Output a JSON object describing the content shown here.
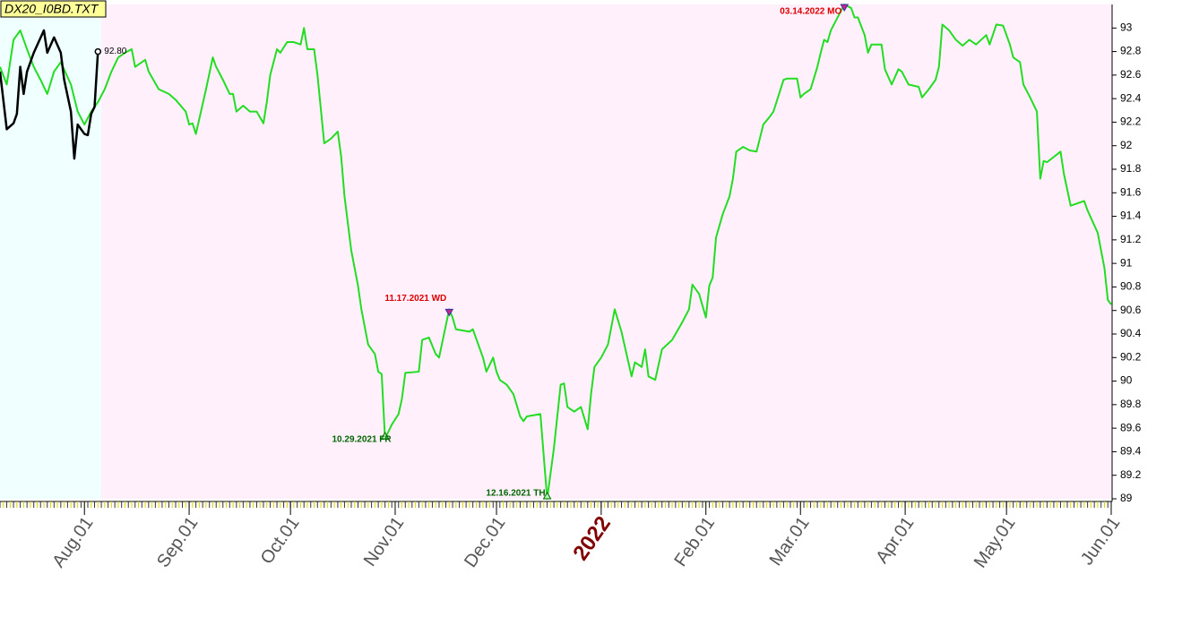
{
  "chart_data": {
    "type": "line",
    "title": "DX20_I0BD.TXT",
    "xlim": [
      "2021-07-07",
      "2022-06-01"
    ],
    "ylim": [
      89,
      93.2
    ],
    "yticks": [
      89,
      89.2,
      89.4,
      89.6,
      89.8,
      90,
      90.2,
      90.4,
      90.6,
      90.8,
      91,
      91.2,
      91.4,
      91.6,
      91.8,
      92,
      92.2,
      92.4,
      92.6,
      92.8,
      93
    ],
    "xticks": [
      {
        "value": "2021-08-01",
        "label": "Aug.01"
      },
      {
        "value": "2021-09-01",
        "label": "Sep.01"
      },
      {
        "value": "2021-10-01",
        "label": "Oct.01"
      },
      {
        "value": "2021-11-01",
        "label": "Nov.01"
      },
      {
        "value": "2021-12-01",
        "label": "Dec.01"
      },
      {
        "value": "2022-01-01",
        "label": "2022"
      },
      {
        "value": "2022-02-01",
        "label": "Feb.01"
      },
      {
        "value": "2022-03-01",
        "label": "Mar.01"
      },
      {
        "value": "2022-04-01",
        "label": "Apr.01"
      },
      {
        "value": "2022-05-01",
        "label": "May.01"
      },
      {
        "value": "2022-06-01",
        "label": "Jun.01"
      }
    ],
    "series": [
      {
        "color": "#22dd22",
        "x": [
          "2021-07-07",
          "2021-07-09",
          "2021-07-11",
          "2021-07-13",
          "2021-07-15",
          "2021-07-17",
          "2021-07-19",
          "2021-07-21",
          "2021-07-23",
          "2021-07-25",
          "2021-07-28",
          "2021-07-30",
          "2021-08-01",
          "2021-08-03",
          "2021-08-05",
          "2021-08-07",
          "2021-08-09",
          "2021-08-11",
          "2021-08-13",
          "2021-08-15",
          "2021-08-16",
          "2021-08-19",
          "2021-08-20",
          "2021-08-23",
          "2021-08-26",
          "2021-08-28",
          "2021-08-31",
          "2021-09-01",
          "2021-09-02",
          "2021-09-03",
          "2021-09-06",
          "2021-09-08",
          "2021-09-09",
          "2021-09-11",
          "2021-09-13",
          "2021-09-14",
          "2021-09-15",
          "2021-09-17",
          "2021-09-19",
          "2021-09-21",
          "2021-09-23",
          "2021-09-24",
          "2021-09-25",
          "2021-09-27",
          "2021-09-28",
          "2021-09-30",
          "2021-10-02",
          "2021-10-04",
          "2021-10-05",
          "2021-10-06",
          "2021-10-08",
          "2021-10-09",
          "2021-10-11",
          "2021-10-13",
          "2021-10-15",
          "2021-10-16",
          "2021-10-17",
          "2021-10-19",
          "2021-10-21",
          "2021-10-22",
          "2021-10-24",
          "2021-10-26",
          "2021-10-27",
          "2021-10-28",
          "2021-10-29",
          "2021-10-31",
          "2021-11-02",
          "2021-11-03",
          "2021-11-04",
          "2021-11-08",
          "2021-11-09",
          "2021-11-11",
          "2021-11-13",
          "2021-11-14",
          "2021-11-17",
          "2021-11-18",
          "2021-11-19",
          "2021-11-23",
          "2021-11-24",
          "2021-11-27",
          "2021-11-28",
          "2021-11-30",
          "2021-12-01",
          "2021-12-02",
          "2021-12-04",
          "2021-12-06",
          "2021-12-08",
          "2021-12-09",
          "2021-12-10",
          "2021-12-14",
          "2021-12-16",
          "2021-12-18",
          "2021-12-20",
          "2021-12-21",
          "2021-12-22",
          "2021-12-24",
          "2021-12-26",
          "2021-12-28",
          "2021-12-29",
          "2021-12-30",
          "2022-01-01",
          "2022-01-03",
          "2022-01-05",
          "2022-01-07",
          "2022-01-10",
          "2022-01-11",
          "2022-01-13",
          "2022-01-14",
          "2022-01-15",
          "2022-01-17",
          "2022-01-19",
          "2022-01-22",
          "2022-01-25",
          "2022-01-27",
          "2022-01-28",
          "2022-01-30",
          "2022-02-01",
          "2022-02-02",
          "2022-02-03",
          "2022-02-04",
          "2022-02-06",
          "2022-02-08",
          "2022-02-09",
          "2022-02-10",
          "2022-02-12",
          "2022-02-14",
          "2022-02-16",
          "2022-02-18",
          "2022-02-20",
          "2022-02-21",
          "2022-02-24",
          "2022-02-25",
          "2022-02-28",
          "2022-03-01",
          "2022-03-02",
          "2022-03-04",
          "2022-03-06",
          "2022-03-07",
          "2022-03-08",
          "2022-03-09",
          "2022-03-10",
          "2022-03-12",
          "2022-03-14",
          "2022-03-16",
          "2022-03-17",
          "2022-03-18",
          "2022-03-20",
          "2022-03-21",
          "2022-03-22",
          "2022-03-25",
          "2022-03-26",
          "2022-03-28",
          "2022-03-30",
          "2022-03-31",
          "2022-04-02",
          "2022-04-05",
          "2022-04-06",
          "2022-04-08",
          "2022-04-10",
          "2022-04-11",
          "2022-04-12",
          "2022-04-14",
          "2022-04-16",
          "2022-04-18",
          "2022-04-20",
          "2022-04-22",
          "2022-04-25",
          "2022-04-26",
          "2022-04-28",
          "2022-04-30",
          "2022-05-02",
          "2022-05-03",
          "2022-05-05",
          "2022-05-06",
          "2022-05-08",
          "2022-05-10",
          "2022-05-11",
          "2022-05-12",
          "2022-05-13",
          "2022-05-17",
          "2022-05-18",
          "2022-05-20",
          "2022-05-24",
          "2022-05-25",
          "2022-05-28",
          "2022-05-30",
          "2022-05-31",
          "2022-06-01"
        ],
        "values": [
          92.67,
          92.52,
          92.9,
          92.98,
          92.82,
          92.67,
          92.56,
          92.44,
          92.63,
          92.71,
          92.52,
          92.29,
          92.18,
          92.29,
          92.37,
          92.48,
          92.63,
          92.75,
          92.79,
          92.82,
          92.67,
          92.73,
          92.63,
          92.48,
          92.44,
          92.39,
          92.29,
          92.18,
          92.19,
          92.1,
          92.48,
          92.75,
          92.67,
          92.56,
          92.44,
          92.44,
          92.29,
          92.34,
          92.29,
          92.29,
          92.19,
          92.37,
          92.6,
          92.82,
          92.79,
          92.88,
          92.88,
          92.86,
          93.0,
          92.82,
          92.82,
          92.6,
          92.02,
          92.06,
          92.12,
          91.91,
          91.57,
          91.11,
          90.81,
          90.61,
          90.31,
          90.23,
          90.08,
          90.06,
          89.51,
          89.63,
          89.72,
          89.85,
          90.07,
          90.08,
          90.35,
          90.37,
          90.23,
          90.2,
          90.61,
          90.54,
          90.44,
          90.42,
          90.44,
          90.2,
          90.08,
          90.2,
          90.08,
          90.01,
          89.97,
          89.89,
          89.7,
          89.66,
          89.7,
          89.72,
          89.0,
          89.43,
          89.97,
          89.98,
          89.78,
          89.74,
          89.78,
          89.59,
          89.89,
          90.12,
          90.2,
          90.31,
          90.61,
          90.42,
          90.04,
          90.16,
          90.12,
          90.27,
          90.04,
          90.01,
          90.27,
          90.35,
          90.5,
          90.61,
          90.82,
          90.74,
          90.54,
          90.81,
          90.88,
          91.22,
          91.42,
          91.57,
          91.72,
          91.95,
          91.99,
          91.96,
          91.95,
          92.18,
          92.25,
          92.29,
          92.56,
          92.57,
          92.57,
          92.41,
          92.44,
          92.48,
          92.67,
          92.79,
          92.9,
          92.88,
          92.98,
          93.09,
          93.2,
          93.17,
          93.09,
          93.09,
          92.94,
          92.79,
          92.86,
          92.86,
          92.65,
          92.52,
          92.65,
          92.63,
          92.52,
          92.5,
          92.41,
          92.48,
          92.56,
          92.67,
          93.03,
          92.98,
          92.9,
          92.85,
          92.9,
          92.86,
          92.94,
          92.86,
          93.03,
          93.02,
          92.86,
          92.75,
          92.71,
          92.52,
          92.41,
          92.29,
          91.72,
          91.87,
          91.86,
          91.95,
          91.76,
          91.49,
          91.53,
          91.45,
          91.26,
          90.96,
          90.69,
          90.65
        ]
      },
      {
        "color": "#000000",
        "x": [
          "2021-07-07",
          "2021-07-09",
          "2021-07-11",
          "2021-07-12",
          "2021-07-13",
          "2021-07-14",
          "2021-07-15",
          "2021-07-17",
          "2021-07-20",
          "2021-07-21",
          "2021-07-23",
          "2021-07-25",
          "2021-07-26",
          "2021-07-28",
          "2021-07-29",
          "2021-07-30",
          "2021-08-01",
          "2021-08-02",
          "2021-08-03",
          "2021-08-04",
          "2021-08-05"
        ],
        "values": [
          92.63,
          92.14,
          92.19,
          92.27,
          92.67,
          92.44,
          92.63,
          92.79,
          92.98,
          92.79,
          92.92,
          92.79,
          92.56,
          92.29,
          91.89,
          92.18,
          92.1,
          92.09,
          92.27,
          92.33,
          92.8
        ]
      }
    ],
    "annotations": [
      {
        "x": "2021-10-29",
        "y": 89.51,
        "label": "10.29.2021 FR",
        "marker": "up",
        "color": "#006600"
      },
      {
        "x": "2021-11-17",
        "y": 90.61,
        "label": "11.17.2021 WD",
        "marker": "down",
        "color": "#dd0000"
      },
      {
        "x": "2021-12-16",
        "y": 89.0,
        "label": "12.16.2021 TH",
        "marker": "up",
        "color": "#006600"
      },
      {
        "x": "2022-03-14",
        "y": 93.2,
        "label": "03.14.2022 MO",
        "marker": "down",
        "color": "#dd0000"
      },
      {
        "x": "2021-08-05",
        "y": 92.8,
        "label": "92.80",
        "marker": "circle",
        "color": "#000000"
      }
    ]
  }
}
